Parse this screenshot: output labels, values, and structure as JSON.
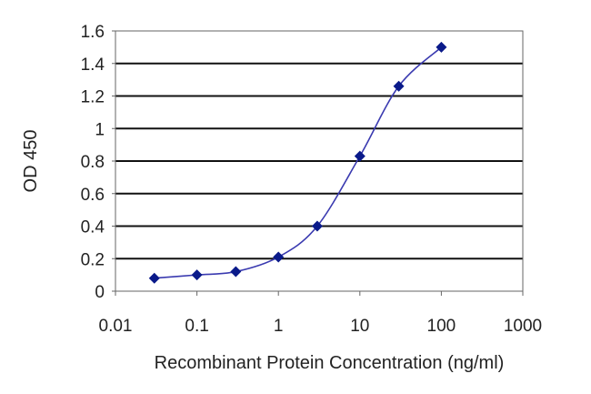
{
  "chart_data": {
    "type": "line",
    "title": "",
    "xlabel": "Recombinant Protein Concentration (ng/ml)",
    "ylabel": "OD 450",
    "xscale": "log",
    "xlim": [
      0.01,
      1000
    ],
    "ylim": [
      0,
      1.6
    ],
    "xticks": [
      "0.01",
      "0.1",
      "1",
      "10",
      "100",
      "1000"
    ],
    "yticks": [
      "0",
      "0.2",
      "0.4",
      "0.6",
      "0.8",
      "1",
      "1.2",
      "1.4",
      "1.6"
    ],
    "grid": "horizontal",
    "series": [
      {
        "x": [
          0.03,
          0.1,
          0.3,
          1,
          3,
          10,
          30,
          100
        ],
        "y": [
          0.08,
          0.1,
          0.12,
          0.21,
          0.4,
          0.83,
          1.26,
          1.5
        ],
        "marker": "diamond",
        "color": "#0a1a8a"
      }
    ]
  }
}
